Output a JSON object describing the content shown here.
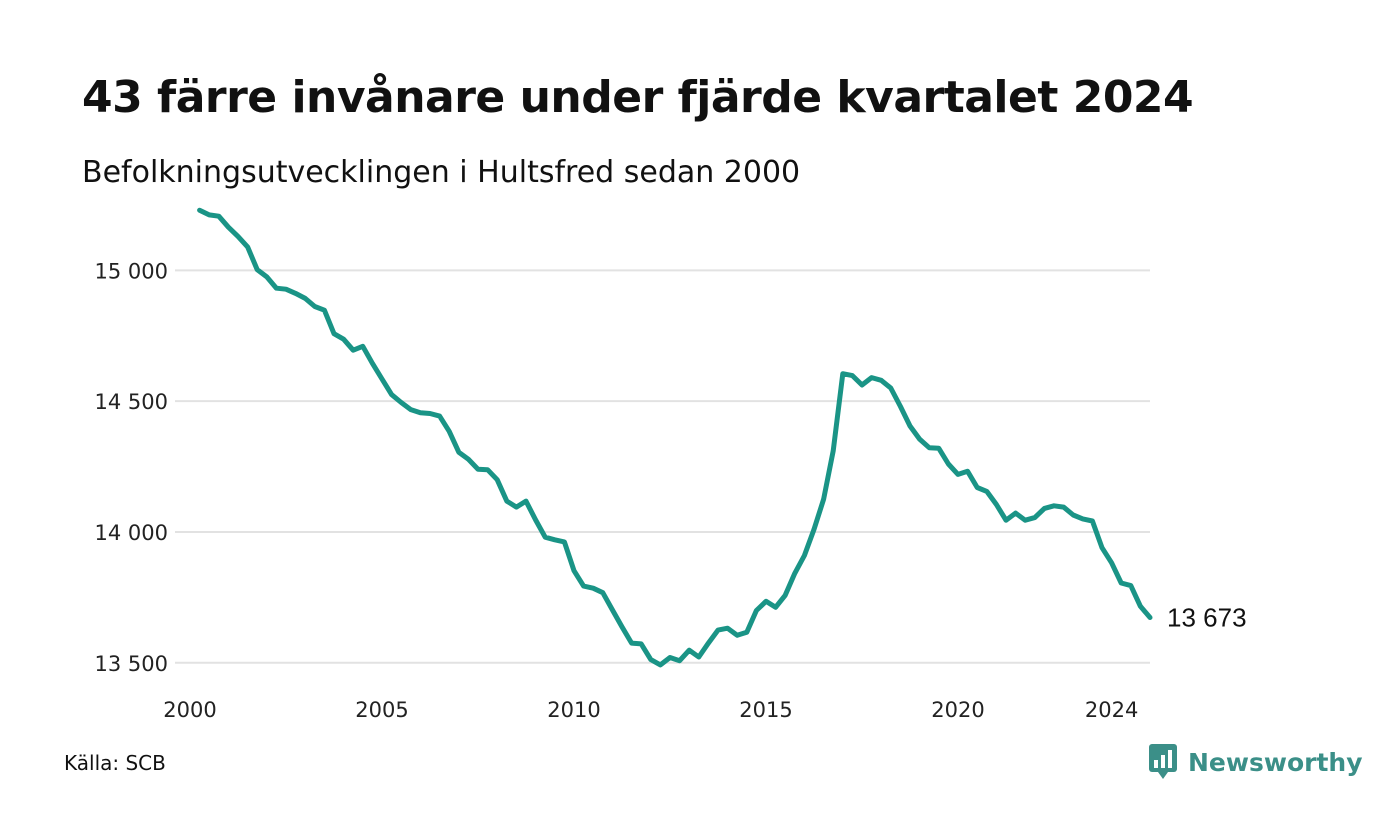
{
  "header": {
    "title": "43 färre invånare under fjärde kvartalet 2024",
    "subtitle": "Befolkningsutvecklingen i Hultsfred sedan 2000"
  },
  "footer": {
    "source": "Källa: SCB",
    "brand": "Newsworthy",
    "brand_icon": "bar-chart-speech-bubble-icon"
  },
  "colors": {
    "line": "#1a9486",
    "grid": "#e2e2e2",
    "brand": "#3b8f88"
  },
  "chart_data": {
    "type": "line",
    "title": "43 färre invånare under fjärde kvartalet 2024",
    "subtitle": "Befolkningsutvecklingen i Hultsfred sedan 2000",
    "xlabel": "",
    "ylabel": "",
    "x_ticks": [
      "2000",
      "2005",
      "2010",
      "2015",
      "2020",
      "2024"
    ],
    "x_tick_values": [
      2000,
      2005,
      2010,
      2015,
      2020,
      2024
    ],
    "y_ticks": [
      "13 500",
      "14 000",
      "14 500",
      "15 000"
    ],
    "y_tick_values": [
      13500,
      14000,
      14500,
      15000
    ],
    "xlim": [
      2000,
      2025
    ],
    "ylim": [
      13480,
      15250
    ],
    "grid": "horizontal",
    "end_label": "13 673",
    "series": [
      {
        "x": [
          2000.25,
          2000.5,
          2000.75,
          2001.0,
          2001.25,
          2001.5,
          2001.75,
          2002.0,
          2002.25,
          2002.5,
          2002.75,
          2003.0,
          2003.25,
          2003.5,
          2003.75,
          2004.0,
          2004.25,
          2004.5,
          2004.75,
          2005.0,
          2005.25,
          2005.5,
          2005.75,
          2006.0,
          2006.25,
          2006.5,
          2006.75,
          2007.0,
          2007.25,
          2007.5,
          2007.75,
          2008.0,
          2008.25,
          2008.5,
          2008.75,
          2009.0,
          2009.25,
          2009.5,
          2009.75,
          2010.0,
          2010.25,
          2010.5,
          2010.75,
          2011.0,
          2011.25,
          2011.5,
          2011.75,
          2012.0,
          2012.25,
          2012.5,
          2012.75,
          2013.0,
          2013.25,
          2013.5,
          2013.75,
          2014.0,
          2014.25,
          2014.5,
          2014.75,
          2015.0,
          2015.25,
          2015.5,
          2015.75,
          2016.0,
          2016.25,
          2016.5,
          2016.75,
          2017.0,
          2017.25,
          2017.5,
          2017.75,
          2018.0,
          2018.25,
          2018.5,
          2018.75,
          2019.0,
          2019.25,
          2019.5,
          2019.75,
          2020.0,
          2020.25,
          2020.5,
          2020.75,
          2021.0,
          2021.25,
          2021.5,
          2021.75,
          2022.0,
          2022.25,
          2022.5,
          2022.75,
          2023.0,
          2023.25,
          2023.5,
          2023.75,
          2024.0,
          2024.25,
          2024.5,
          2024.75,
          2025.0
        ],
        "values": [
          15230,
          15212,
          15207,
          15165,
          15130,
          15090,
          15003,
          14975,
          14932,
          14928,
          14912,
          14893,
          14862,
          14848,
          14758,
          14737,
          14695,
          14710,
          14645,
          14585,
          14525,
          14495,
          14468,
          14456,
          14453,
          14443,
          14385,
          14305,
          14278,
          14240,
          14238,
          14200,
          14118,
          14095,
          14118,
          14046,
          13980,
          13970,
          13962,
          13852,
          13793,
          13785,
          13768,
          13702,
          13637,
          13575,
          13572,
          13512,
          13492,
          13520,
          13508,
          13548,
          13522,
          13575,
          13625,
          13632,
          13605,
          13617,
          13700,
          13735,
          13712,
          13758,
          13842,
          13910,
          14010,
          14125,
          14310,
          14605,
          14598,
          14562,
          14590,
          14580,
          14550,
          14480,
          14405,
          14355,
          14322,
          14320,
          14260,
          14220,
          14232,
          14170,
          14155,
          14105,
          14045,
          14072,
          14045,
          14055,
          14090,
          14100,
          14095,
          14065,
          14050,
          14042,
          13940,
          13882,
          13805,
          13795,
          13716,
          13673
        ]
      }
    ]
  }
}
